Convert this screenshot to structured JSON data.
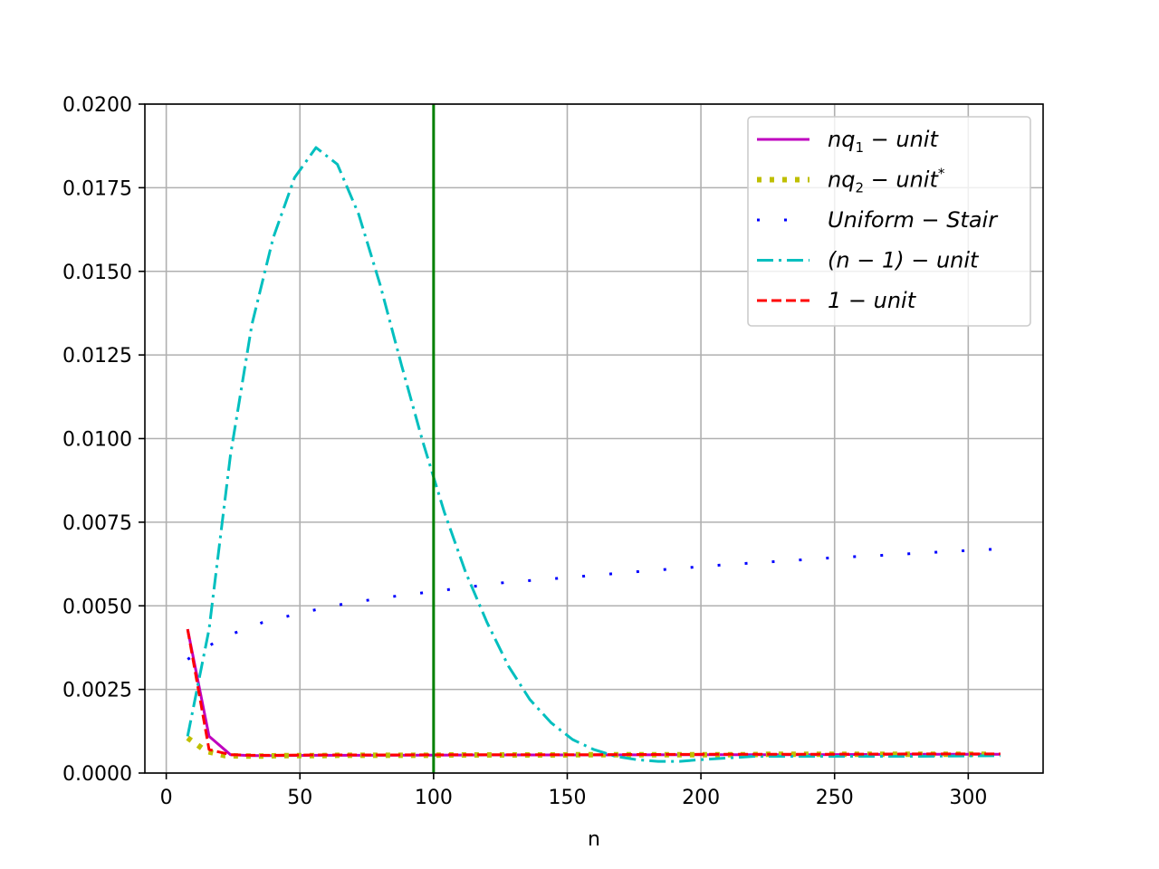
{
  "chart_data": {
    "type": "line",
    "title": "",
    "xlabel": "n",
    "ylabel": "",
    "xlim": [
      -8,
      328
    ],
    "ylim": [
      0,
      0.02
    ],
    "xticks": [
      0,
      50,
      100,
      150,
      200,
      250,
      300
    ],
    "xtick_labels": [
      "0",
      "50",
      "100",
      "150",
      "200",
      "250",
      "300"
    ],
    "yticks": [
      0,
      0.0025,
      0.005,
      0.0075,
      0.01,
      0.0125,
      0.015,
      0.0175,
      0.02
    ],
    "ytick_labels": [
      "0.0000",
      "0.0025",
      "0.0050",
      "0.0075",
      "0.0100",
      "0.0125",
      "0.0150",
      "0.0175",
      "0.0200"
    ],
    "grid": true,
    "legend_position": "top-right",
    "vertical_line": {
      "x": 100,
      "color": "#008000"
    },
    "series": [
      {
        "name": "nq1-unit",
        "legend_parts": {
          "pre": "nq",
          "sub": "1",
          "post": " − unit",
          "sup": ""
        },
        "color": "#bf00bf",
        "style": "solid",
        "x": [
          8,
          16,
          24,
          32,
          40,
          56,
          80,
          120,
          160,
          200,
          240,
          280,
          312
        ],
        "y": [
          0.0043,
          0.0011,
          0.00055,
          0.00052,
          0.00052,
          0.00053,
          0.00053,
          0.00054,
          0.00054,
          0.00055,
          0.00055,
          0.00056,
          0.00056
        ]
      },
      {
        "name": "nq2-unit*",
        "legend_parts": {
          "pre": "nq",
          "sub": "2",
          "post": " − unit",
          "sup": "*"
        },
        "color": "#bfbf00",
        "style": "dotted-thick",
        "x": [
          8,
          15,
          22,
          29,
          36,
          43,
          50,
          57,
          64,
          71,
          78,
          85,
          92,
          99,
          106,
          113,
          120,
          127,
          134,
          141,
          148,
          155,
          162,
          169,
          176,
          183,
          190,
          197,
          204,
          211,
          218,
          225,
          232,
          239,
          246,
          253,
          260,
          267,
          274,
          281,
          288,
          295,
          302,
          309
        ],
        "y": [
          0.00105,
          0.00065,
          0.00052,
          0.00051,
          0.00051,
          0.00052,
          0.00052,
          0.00052,
          0.00053,
          0.00053,
          0.00053,
          0.00053,
          0.00053,
          0.00053,
          0.00054,
          0.00054,
          0.00054,
          0.00054,
          0.00054,
          0.00054,
          0.00054,
          0.00055,
          0.00055,
          0.00055,
          0.00055,
          0.00055,
          0.00055,
          0.00055,
          0.00055,
          0.00055,
          0.00055,
          0.00056,
          0.00056,
          0.00056,
          0.00056,
          0.00056,
          0.00056,
          0.00056,
          0.00056,
          0.00056,
          0.00056,
          0.00056,
          0.00056,
          0.00056
        ]
      },
      {
        "name": "Uniform-Stair",
        "legend_parts": {
          "pre": "Uniform − Stair",
          "sub": "",
          "post": "",
          "sup": ""
        },
        "color": "#0000ff",
        "style": "dotted",
        "x": [
          8,
          21,
          36,
          51,
          66,
          82,
          97,
          112,
          127,
          143,
          158,
          173,
          189,
          204,
          219,
          235,
          250,
          266,
          281,
          296,
          312
        ],
        "y": [
          0.0034,
          0.00405,
          0.0045,
          0.0048,
          0.00505,
          0.00525,
          0.0054,
          0.00555,
          0.0057,
          0.0058,
          0.0059,
          0.006,
          0.0061,
          0.0062,
          0.00628,
          0.00636,
          0.00644,
          0.0065,
          0.00657,
          0.00664,
          0.0067
        ]
      },
      {
        "name": "(n-1)-unit",
        "legend_parts": {
          "pre": "(n − 1) − unit",
          "sub": "",
          "post": "",
          "sup": ""
        },
        "color": "#00bfbf",
        "style": "dashdot",
        "x": [
          8,
          16,
          24,
          32,
          40,
          48,
          56,
          64,
          72,
          80,
          88,
          96,
          104,
          112,
          120,
          128,
          136,
          144,
          152,
          160,
          168,
          176,
          184,
          192,
          200,
          210,
          220,
          240,
          260,
          280,
          312
        ],
        "y": [
          0.0011,
          0.0043,
          0.0095,
          0.0134,
          0.016,
          0.0178,
          0.0187,
          0.0182,
          0.0167,
          0.0146,
          0.0122,
          0.0099,
          0.0078,
          0.006,
          0.0045,
          0.0032,
          0.0022,
          0.0015,
          0.001,
          0.0007,
          0.0005,
          0.0004,
          0.00035,
          0.00035,
          0.0004,
          0.00045,
          0.0005,
          0.0005,
          0.0005,
          0.0005,
          0.00052
        ]
      },
      {
        "name": "1-unit",
        "legend_parts": {
          "pre": "1 − unit",
          "sub": "",
          "post": "",
          "sup": ""
        },
        "color": "#ff0000",
        "style": "dashed",
        "x": [
          8,
          16,
          24,
          32,
          40,
          56,
          80,
          120,
          160,
          200,
          240,
          280,
          312
        ],
        "y": [
          0.0043,
          0.0007,
          0.00055,
          0.00053,
          0.00053,
          0.00054,
          0.00054,
          0.00055,
          0.00055,
          0.00056,
          0.00056,
          0.00057,
          0.00057
        ]
      }
    ]
  }
}
